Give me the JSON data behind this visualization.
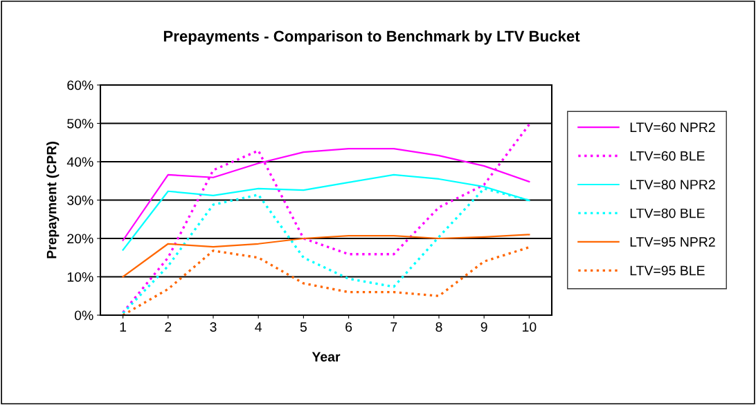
{
  "chart_data": {
    "type": "line",
    "title": "Prepayments - Comparison to Benchmark by LTV Bucket",
    "xlabel": "Year",
    "ylabel": "Prepayment (CPR)",
    "categories": [
      "1",
      "2",
      "3",
      "4",
      "5",
      "6",
      "7",
      "8",
      "9",
      "10"
    ],
    "series": [
      {
        "name": "LTV=60 NPR2",
        "color": "#ff00ff",
        "line_style": "solid",
        "values": [
          19.5,
          36.6,
          35.9,
          39.6,
          42.5,
          43.4,
          43.4,
          41.6,
          38.9,
          34.8
        ]
      },
      {
        "name": "LTV=60 BLE",
        "color": "#ff00ff",
        "line_style": "dotted",
        "values": [
          0.7,
          15,
          37.8,
          42.9,
          20,
          15.9,
          15.9,
          28.1,
          34,
          49.7
        ]
      },
      {
        "name": "LTV=80 NPR2",
        "color": "#00ffff",
        "line_style": "solid",
        "values": [
          17,
          32.3,
          31.2,
          33,
          32.6,
          34.6,
          36.6,
          35.5,
          33.5,
          29.9
        ]
      },
      {
        "name": "LTV=80 BLE",
        "color": "#00ffff",
        "line_style": "dotted",
        "values": [
          0.5,
          12.8,
          28.8,
          31.4,
          15,
          9.5,
          7.4,
          20.4,
          33,
          29.9
        ]
      },
      {
        "name": "LTV=95 NPR2",
        "color": "#ff6600",
        "line_style": "solid",
        "values": [
          10,
          18.6,
          17.8,
          18.6,
          20,
          20.7,
          20.7,
          20,
          20.4,
          21
        ]
      },
      {
        "name": "LTV=95 BLE",
        "color": "#ff6600",
        "line_style": "dotted",
        "values": [
          0,
          6.8,
          16.8,
          15,
          8.3,
          6,
          6,
          5,
          14,
          17.7
        ]
      }
    ],
    "ylim": [
      0,
      60
    ],
    "yticks": [
      {
        "value": 0,
        "label": "0%"
      },
      {
        "value": 10,
        "label": "10%"
      },
      {
        "value": 20,
        "label": "20%"
      },
      {
        "value": 30,
        "label": "30%"
      },
      {
        "value": 40,
        "label": "40%"
      },
      {
        "value": 50,
        "label": "50%"
      },
      {
        "value": 60,
        "label": "60%"
      }
    ],
    "grid": "y",
    "legend": "right",
    "marker": "none"
  }
}
